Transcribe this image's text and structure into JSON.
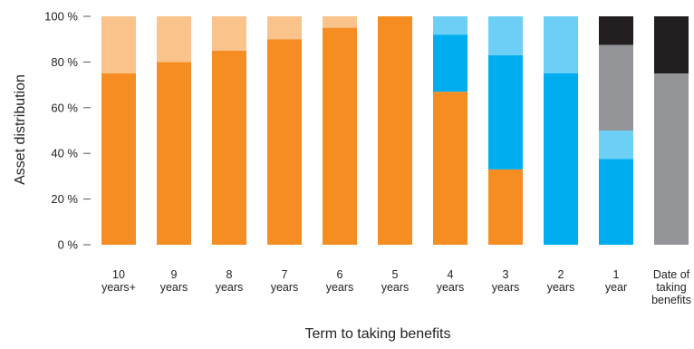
{
  "chart_data": {
    "type": "bar",
    "stacked": true,
    "xlabel": "Term to taking benefits",
    "ylabel": "Asset distribution",
    "ylim": [
      0,
      100
    ],
    "yticks": [
      "0 %",
      "20 %",
      "40 %",
      "60 %",
      "80 %",
      "100 %"
    ],
    "ytick_values": [
      0,
      20,
      40,
      60,
      80,
      100
    ],
    "grid": false,
    "legend": "none",
    "categories": [
      [
        "10",
        "years+"
      ],
      [
        "9",
        "years"
      ],
      [
        "8",
        "years"
      ],
      [
        "7",
        "years"
      ],
      [
        "6",
        "years"
      ],
      [
        "5",
        "years"
      ],
      [
        "4",
        "years"
      ],
      [
        "3",
        "years"
      ],
      [
        "2",
        "years"
      ],
      [
        "1",
        "year"
      ],
      [
        "Date of",
        "taking",
        "benefits"
      ]
    ],
    "series": [
      {
        "color": "#f58d22",
        "values": [
          75,
          80,
          85,
          90,
          95,
          100,
          67,
          33,
          0,
          0,
          0
        ]
      },
      {
        "color": "#fac38c",
        "values": [
          25,
          20,
          15,
          10,
          5,
          0,
          0,
          0,
          0,
          0,
          0
        ]
      },
      {
        "color": "#00aeef",
        "values": [
          0,
          0,
          0,
          0,
          0,
          0,
          25,
          50,
          75,
          37.5,
          0
        ]
      },
      {
        "color": "#6dcff6",
        "values": [
          0,
          0,
          0,
          0,
          0,
          0,
          8,
          17,
          25,
          12.5,
          0
        ]
      },
      {
        "color": "#939598",
        "values": [
          0,
          0,
          0,
          0,
          0,
          0,
          0,
          0,
          0,
          37.5,
          75
        ]
      },
      {
        "color": "#231f20",
        "values": [
          0,
          0,
          0,
          0,
          0,
          0,
          0,
          0,
          0,
          12.5,
          25
        ]
      }
    ]
  }
}
